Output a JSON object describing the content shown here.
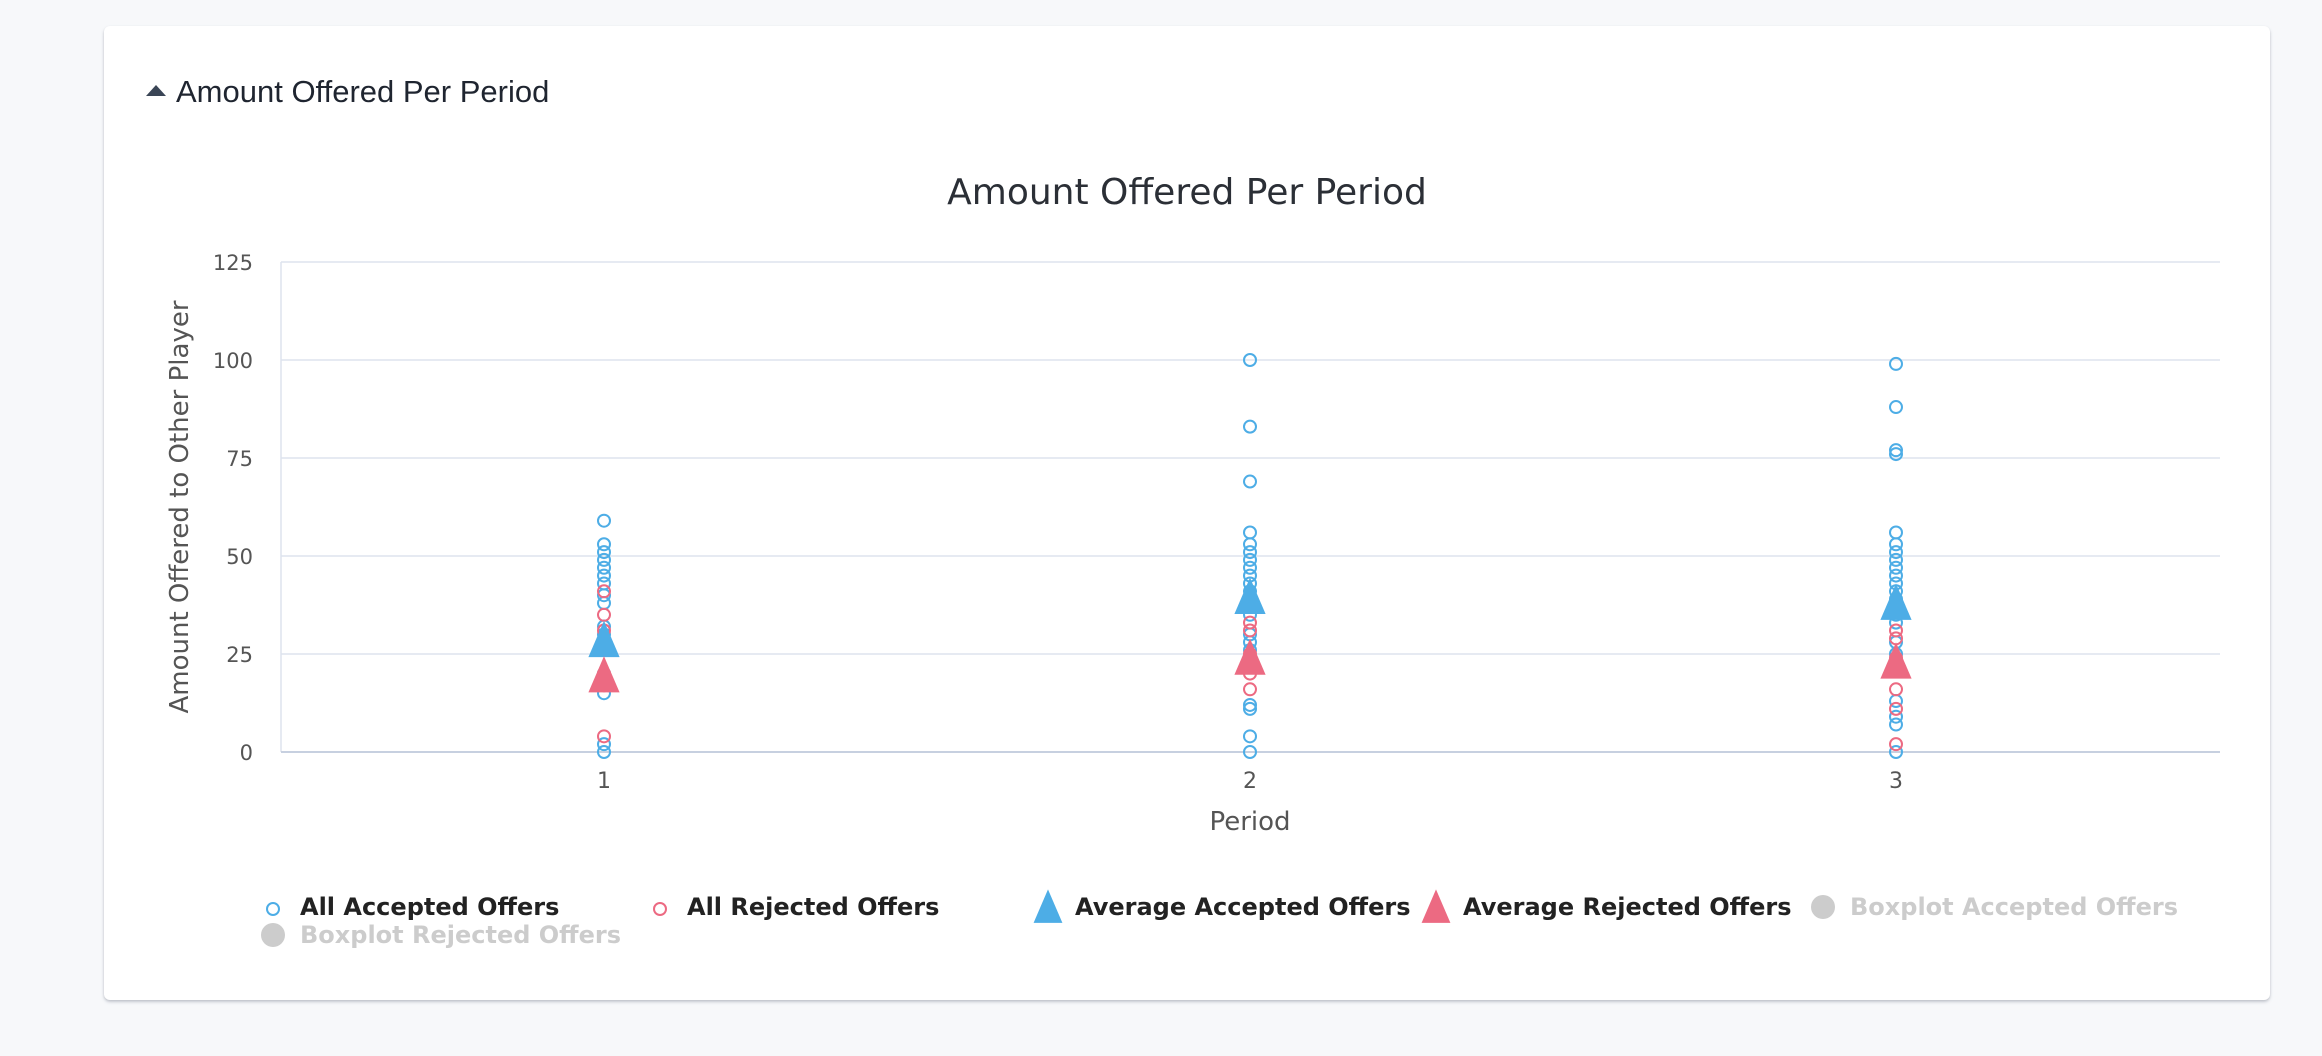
{
  "panel": {
    "title": "Amount Offered Per Period"
  },
  "colors": {
    "accepted": "#4dade6",
    "rejected": "#ec6a82",
    "inactive": "#cccccc",
    "grid": "#dde3ee",
    "axis_text": "#555555",
    "title_text": "#2b2f36"
  },
  "chart_data": {
    "type": "scatter",
    "title": "Amount Offered Per Period",
    "xlabel": "Period",
    "ylabel": "Amount Offered to Other Player",
    "categories": [
      "1",
      "2",
      "3"
    ],
    "y_ticks": [
      0,
      25,
      50,
      75,
      100,
      125
    ],
    "ylim": [
      0,
      125
    ],
    "grid": true,
    "legend_position": "bottom",
    "series": [
      {
        "name": "All Accepted Offers",
        "marker": "circle",
        "color": "#4dade6",
        "points": [
          [
            1,
            59
          ],
          [
            1,
            53
          ],
          [
            1,
            51
          ],
          [
            1,
            49
          ],
          [
            1,
            47
          ],
          [
            1,
            45
          ],
          [
            1,
            43
          ],
          [
            1,
            40
          ],
          [
            1,
            38
          ],
          [
            1,
            32
          ],
          [
            1,
            30
          ],
          [
            1,
            28
          ],
          [
            1,
            20
          ],
          [
            1,
            15
          ],
          [
            1,
            2
          ],
          [
            1,
            0
          ],
          [
            2,
            100
          ],
          [
            2,
            83
          ],
          [
            2,
            69
          ],
          [
            2,
            56
          ],
          [
            2,
            53
          ],
          [
            2,
            51
          ],
          [
            2,
            49
          ],
          [
            2,
            47
          ],
          [
            2,
            45
          ],
          [
            2,
            43
          ],
          [
            2,
            41
          ],
          [
            2,
            39
          ],
          [
            2,
            37
          ],
          [
            2,
            35
          ],
          [
            2,
            30
          ],
          [
            2,
            28
          ],
          [
            2,
            26
          ],
          [
            2,
            24
          ],
          [
            2,
            22
          ],
          [
            2,
            12
          ],
          [
            2,
            11
          ],
          [
            2,
            4
          ],
          [
            2,
            0
          ],
          [
            3,
            99
          ],
          [
            3,
            88
          ],
          [
            3,
            77
          ],
          [
            3,
            76
          ],
          [
            3,
            56
          ],
          [
            3,
            53
          ],
          [
            3,
            51
          ],
          [
            3,
            49
          ],
          [
            3,
            47
          ],
          [
            3,
            45
          ],
          [
            3,
            43
          ],
          [
            3,
            41
          ],
          [
            3,
            39
          ],
          [
            3,
            37
          ],
          [
            3,
            35
          ],
          [
            3,
            33
          ],
          [
            3,
            28
          ],
          [
            3,
            25
          ],
          [
            3,
            22
          ],
          [
            3,
            13
          ],
          [
            3,
            9
          ],
          [
            3,
            7
          ],
          [
            3,
            0
          ]
        ]
      },
      {
        "name": "All Rejected Offers",
        "marker": "circle",
        "color": "#ec6a82",
        "points": [
          [
            1,
            41
          ],
          [
            1,
            35
          ],
          [
            1,
            31
          ],
          [
            1,
            20
          ],
          [
            1,
            17
          ],
          [
            1,
            4
          ],
          [
            2,
            33
          ],
          [
            2,
            31
          ],
          [
            2,
            25
          ],
          [
            2,
            22
          ],
          [
            2,
            20
          ],
          [
            2,
            16
          ],
          [
            3,
            31
          ],
          [
            3,
            29
          ],
          [
            3,
            24
          ],
          [
            3,
            16
          ],
          [
            3,
            11
          ],
          [
            3,
            2
          ]
        ]
      },
      {
        "name": "Average Accepted Offers",
        "marker": "triangle",
        "color": "#4dade6",
        "points": [
          [
            1,
            27.5
          ],
          [
            2,
            38.5
          ],
          [
            3,
            37
          ]
        ]
      },
      {
        "name": "Average Rejected Offers",
        "marker": "triangle",
        "color": "#ec6a82",
        "points": [
          [
            1,
            18.5
          ],
          [
            2,
            23
          ],
          [
            3,
            22
          ]
        ]
      },
      {
        "name": "Boxplot Accepted Offers",
        "marker": "circle",
        "color": "#cccccc",
        "hidden": true,
        "points": []
      },
      {
        "name": "Boxplot Rejected Offers",
        "marker": "circle",
        "color": "#cccccc",
        "hidden": true,
        "points": []
      }
    ]
  }
}
